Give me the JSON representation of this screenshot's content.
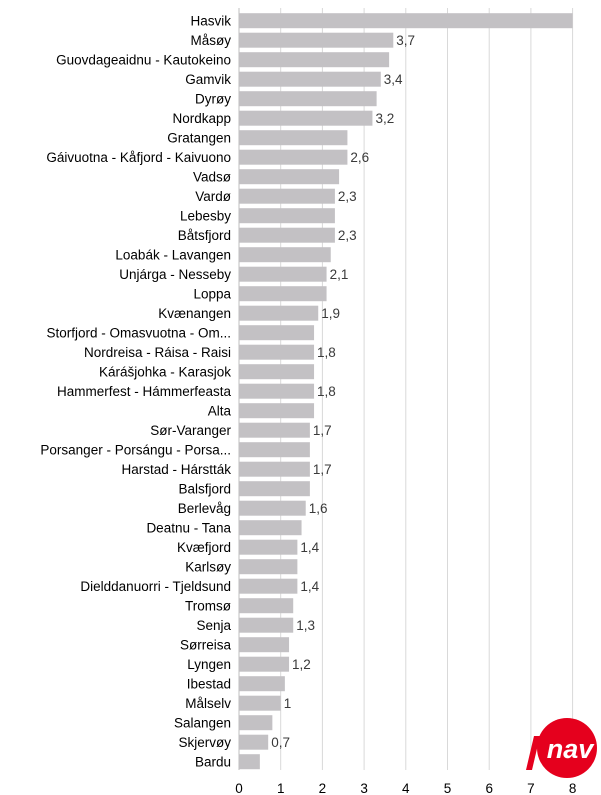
{
  "colors": {
    "bar": "#c3c1c4",
    "grid": "#d9d9d9",
    "logo_red": "#e5001d",
    "logo_text": "#ffffff"
  },
  "logo": {
    "text": "nav",
    "icon": "nav-logo-icon"
  },
  "chart_data": {
    "type": "bar",
    "orientation": "horizontal",
    "title": "",
    "xlabel": "",
    "ylabel": "",
    "xlim": [
      0,
      8
    ],
    "x_ticks": [
      "0",
      "1",
      "2",
      "3",
      "4",
      "5",
      "6",
      "7",
      "8"
    ],
    "grid": true,
    "categories": [
      "Hasvik",
      "Måsøy",
      "Guovdageaidnu - Kautokeino",
      "Gamvik",
      "Dyrøy",
      "Nordkapp",
      "Gratangen",
      "Gáivuotna - Kåfjord - Kaivuono",
      "Vadsø",
      "Vardø",
      "Lebesby",
      "Båtsfjord",
      "Loabák - Lavangen",
      "Unjárga - Nesseby",
      "Loppa",
      "Kvænangen",
      "Storfjord - Omasvuotna - Om...",
      "Nordreisa - Ráisa - Raisi",
      "Kárášjohka - Karasjok",
      "Hammerfest - Hámmerfeasta",
      "Alta",
      "Sør-Varanger",
      "Porsanger - Porsángu - Porsa...",
      "Harstad - Hárstták",
      "Balsfjord",
      "Berlevåg",
      "Deatnu - Tana",
      "Kvæfjord",
      "Karlsøy",
      "Dielddanuorri - Tjeldsund",
      "Tromsø",
      "Senja",
      "Sørreisa",
      "Lyngen",
      "Ibestad",
      "Målselv",
      "Salangen",
      "Skjervøy",
      "Bardu"
    ],
    "values": [
      8.0,
      3.7,
      3.6,
      3.4,
      3.3,
      3.2,
      2.6,
      2.6,
      2.4,
      2.3,
      2.3,
      2.3,
      2.2,
      2.1,
      2.1,
      1.9,
      1.8,
      1.8,
      1.8,
      1.8,
      1.8,
      1.7,
      1.7,
      1.7,
      1.7,
      1.6,
      1.5,
      1.4,
      1.4,
      1.4,
      1.3,
      1.3,
      1.2,
      1.2,
      1.1,
      1.0,
      0.8,
      0.7,
      0.5
    ],
    "data_labels": [
      "",
      "3,7",
      "",
      "3,4",
      "",
      "3,2",
      "",
      "2,6",
      "",
      "2,3",
      "",
      "2,3",
      "",
      "2,1",
      "",
      "1,9",
      "",
      "1,8",
      "",
      "1,8",
      "",
      "1,7",
      "",
      "1,7",
      "",
      "1,6",
      "",
      "1,4",
      "",
      "1,4",
      "",
      "1,3",
      "",
      "1,2",
      "",
      "1",
      "",
      "0,7",
      ""
    ]
  }
}
